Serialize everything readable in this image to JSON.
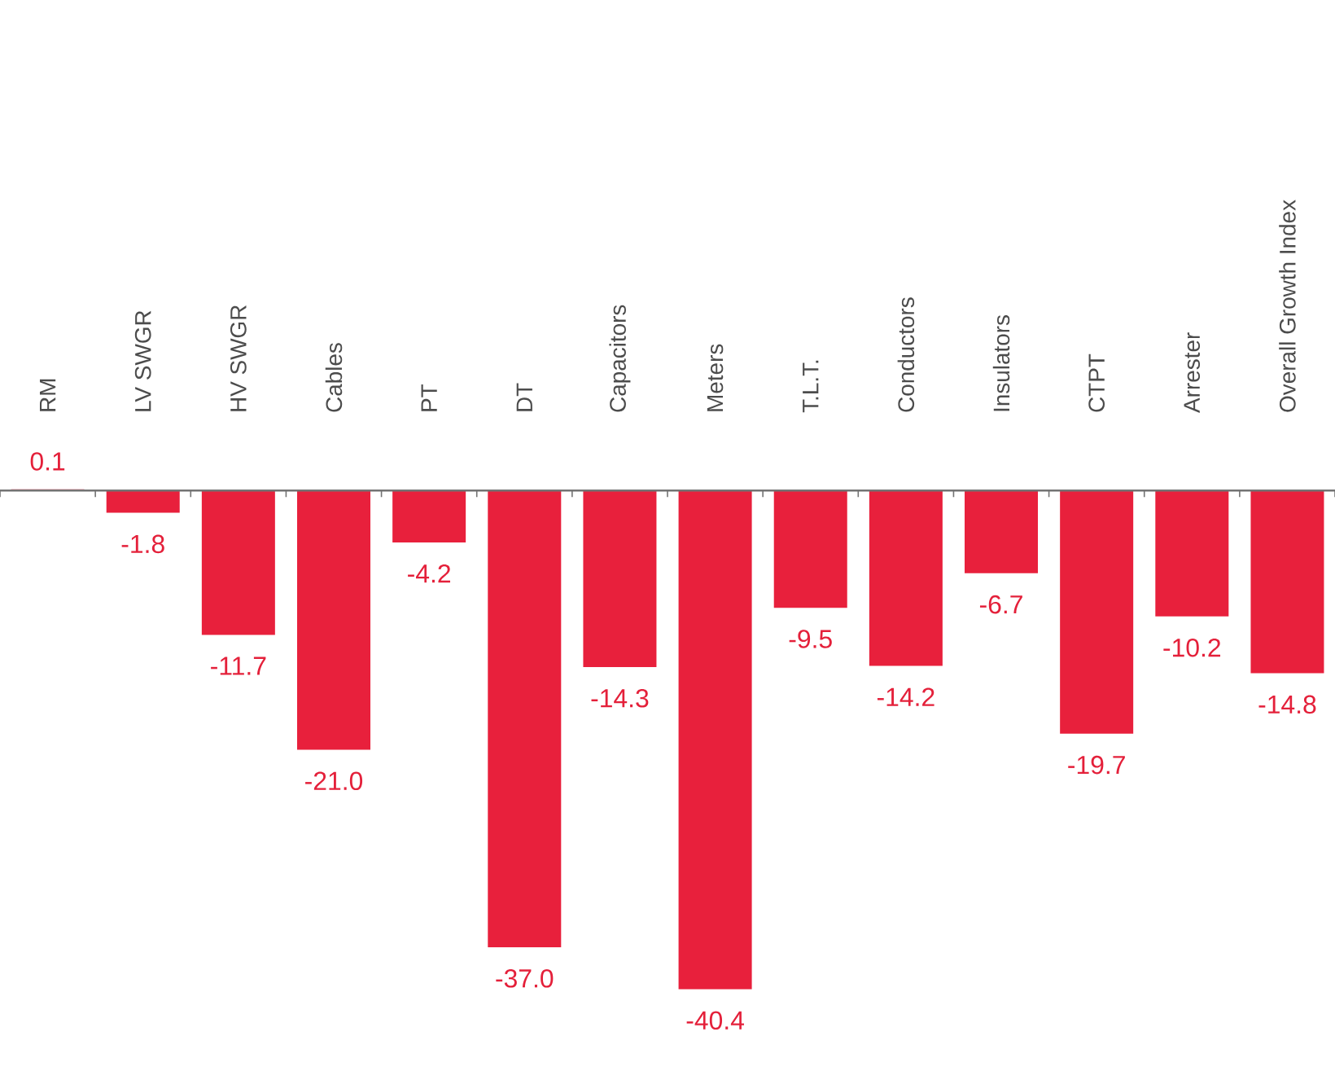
{
  "chart_data": {
    "type": "bar",
    "categories": [
      "RM",
      "LV SWGR",
      "HV SWGR",
      "Cables",
      "PT",
      "DT",
      "Capacitors",
      "Meters",
      "T.L.T.",
      "Conductors",
      "Insulators",
      "CTPT",
      "Arrester",
      "Overall Growth Index"
    ],
    "values": [
      0.1,
      -1.8,
      -11.7,
      -21.0,
      -4.2,
      -37.0,
      -14.3,
      -40.4,
      -9.5,
      -14.2,
      -6.7,
      -19.7,
      -10.2,
      -14.8
    ],
    "value_labels": [
      "0.1",
      "-1.8",
      "-11.7",
      "-21.0",
      "-4.2",
      "-37.0",
      "-14.3",
      "-40.4",
      "-9.5",
      "-14.2",
      "-6.7",
      "-19.7",
      "-10.2",
      "-14.8"
    ],
    "color": "#e8203c"
  }
}
